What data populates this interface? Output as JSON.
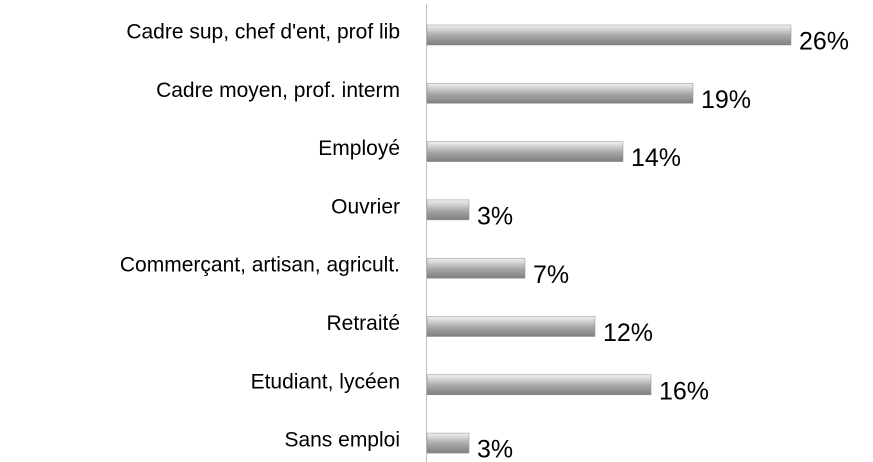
{
  "chart_data": {
    "type": "hbar",
    "categories": [
      "Cadre sup, chef d'ent, prof lib",
      "Cadre moyen, prof. interm",
      "Employé",
      "Ouvrier",
      "Commerçant, artisan, agricult.",
      "Retraité",
      "Etudiant, lycéen",
      "Sans emploi"
    ],
    "values": [
      26,
      19,
      14,
      3,
      7,
      12,
      16,
      3
    ],
    "value_labels": [
      "26%",
      "19%",
      "14%",
      "3%",
      "7%",
      "12%",
      "16%",
      "3%"
    ],
    "color": "#8c8c8c"
  }
}
